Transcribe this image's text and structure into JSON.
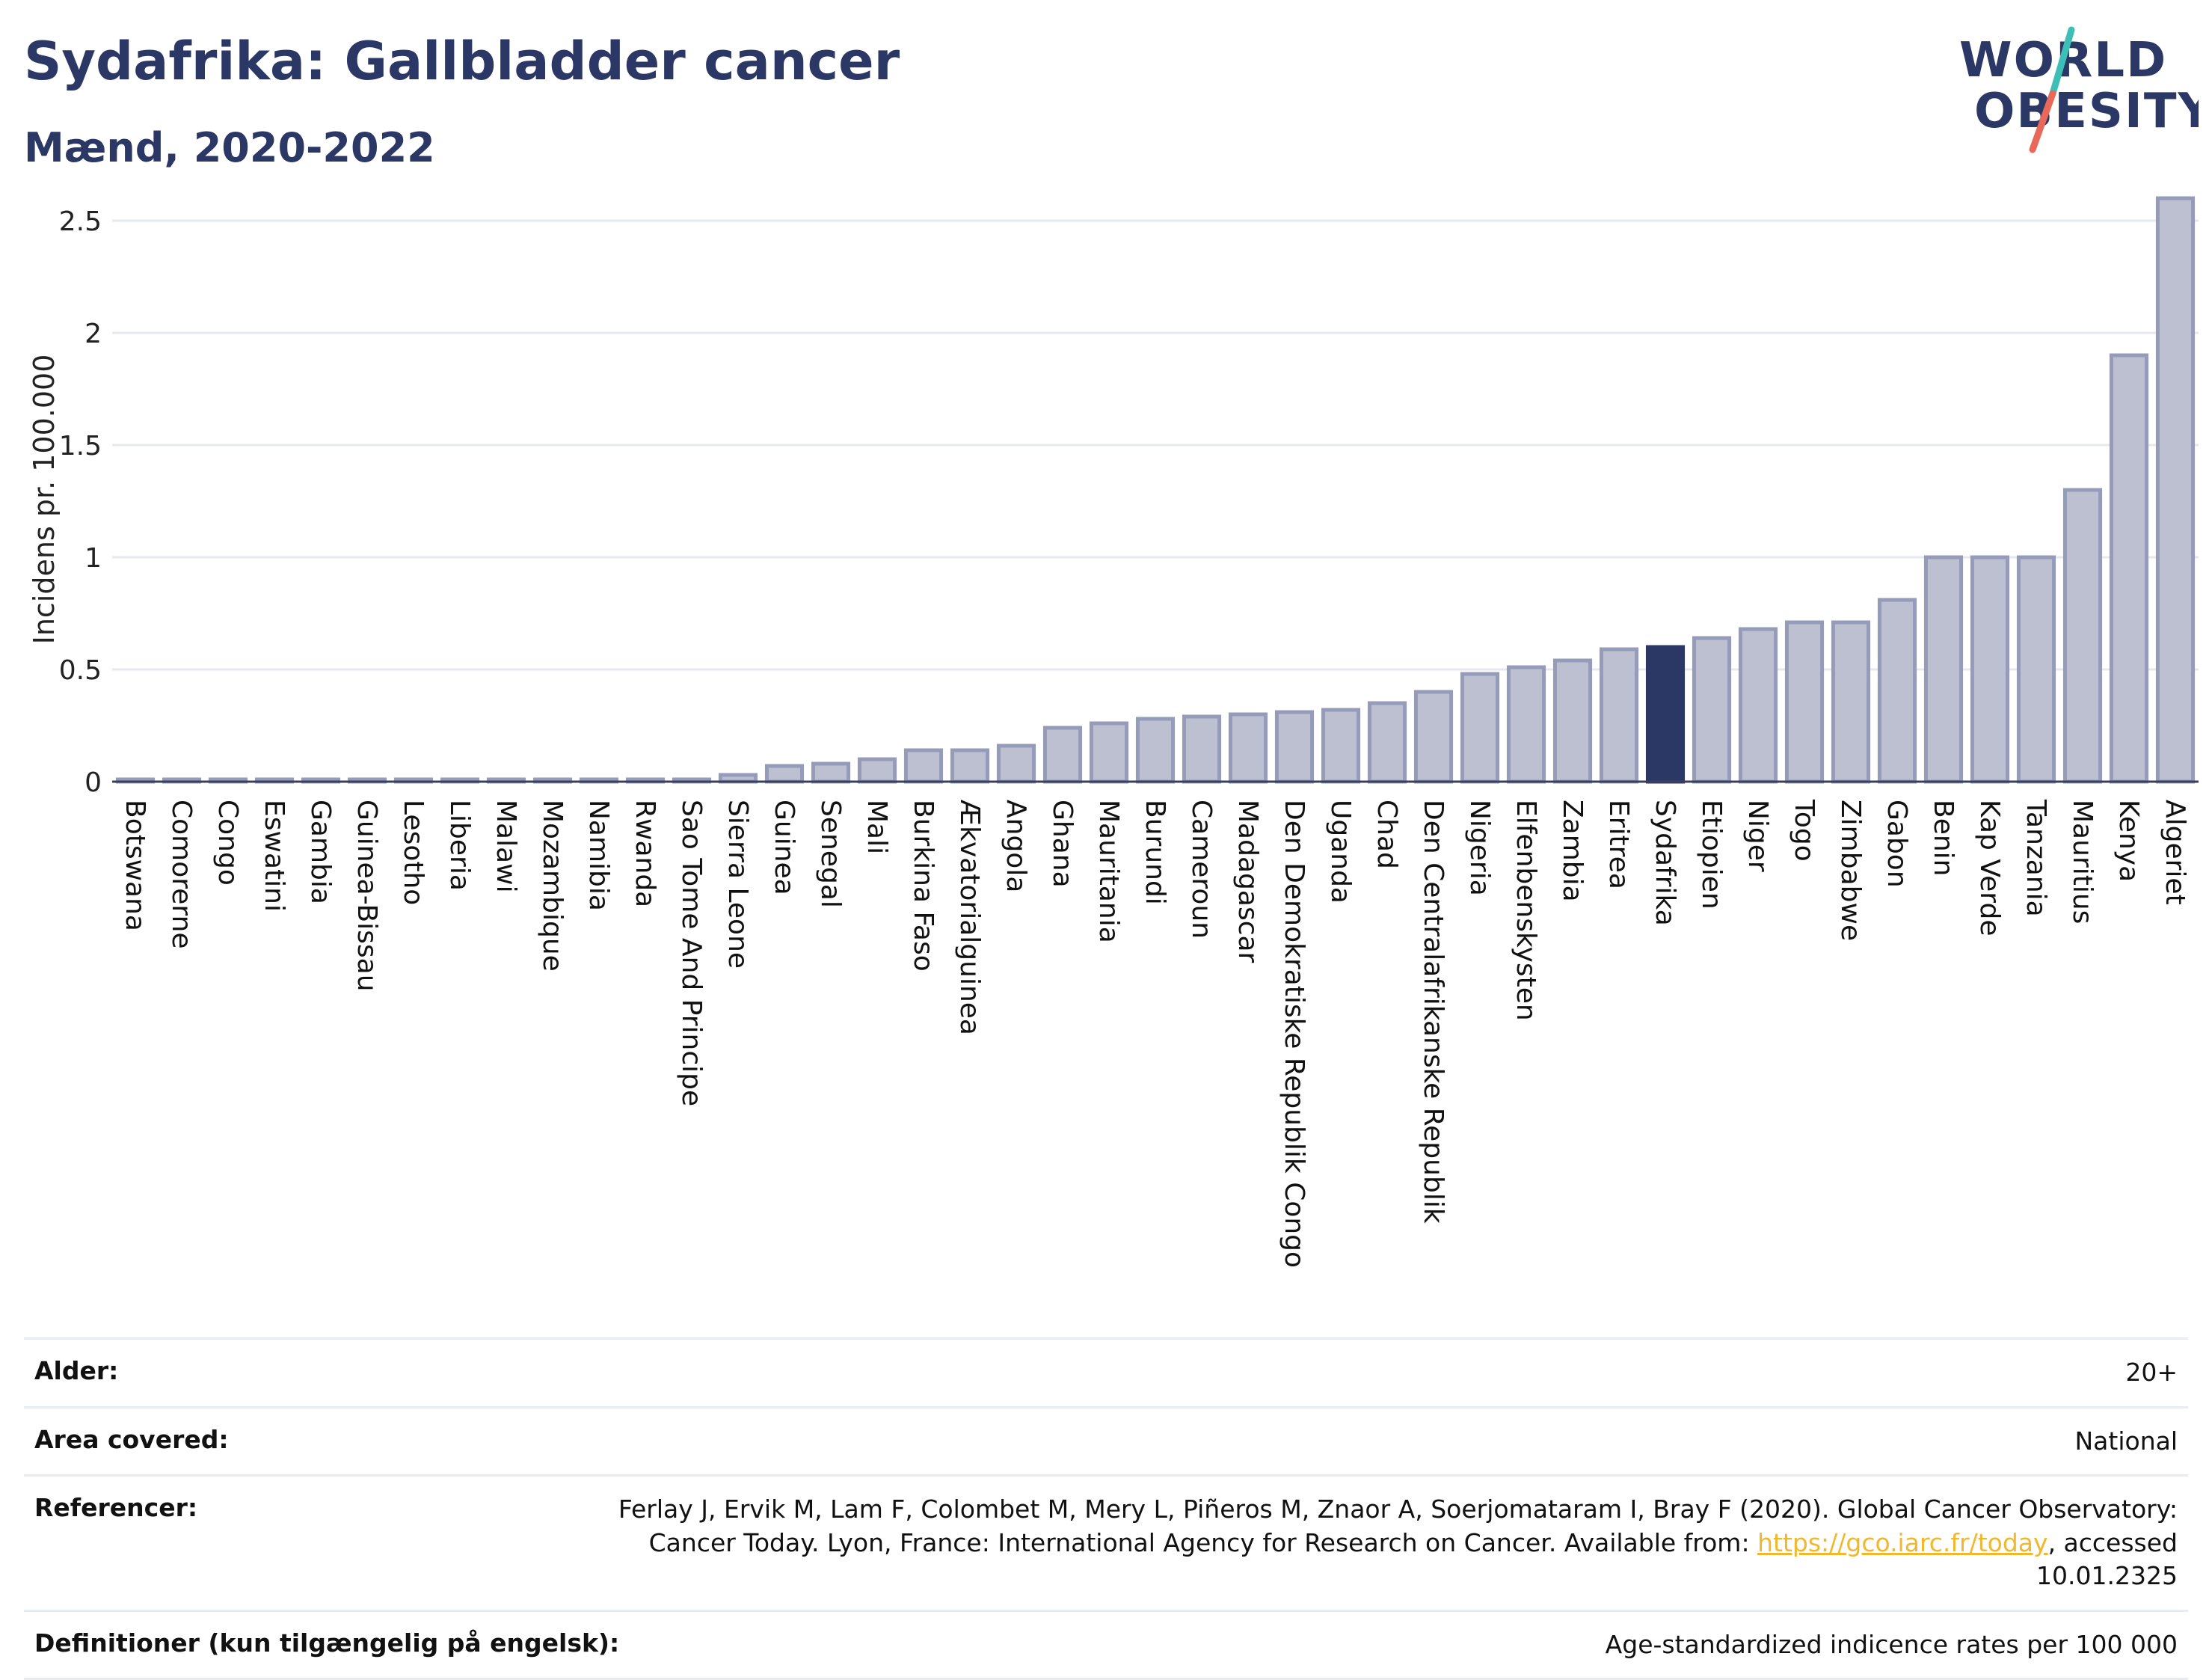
{
  "header": {
    "title": "Sydafrika: Gallbladder cancer",
    "subtitle": "Mænd, 2020-2022"
  },
  "logo": {
    "line1": "WORLD",
    "line2": "OBESITY",
    "colors": {
      "text": "#2b3764",
      "slash_top": "#3dbfb8",
      "slash_bottom": "#e8685a"
    }
  },
  "chart_data": {
    "type": "bar",
    "ylabel": "Incidens pr. 100.000",
    "xlabel": "",
    "ylim": [
      0,
      2.65
    ],
    "yticks": [
      0,
      0.5,
      1,
      1.5,
      2,
      2.5
    ],
    "ytick_labels": [
      "0",
      "0.5",
      "1",
      "1.5",
      "2",
      "2.5"
    ],
    "grid": true,
    "highlight": "Sydafrika",
    "colors": {
      "bar": "#bcc0d1",
      "bar_border": "#959bb8",
      "highlight": "#2b3764"
    },
    "categories": [
      "Botswana",
      "Comorerne",
      "Congo",
      "Eswatini",
      "Gambia",
      "Guinea-Bissau",
      "Lesotho",
      "Liberia",
      "Malawi",
      "Mozambique",
      "Namibia",
      "Rwanda",
      "Sao Tome And Principe",
      "Sierra Leone",
      "Guinea",
      "Senegal",
      "Mali",
      "Burkina Faso",
      "Ækvatorialguinea",
      "Angola",
      "Ghana",
      "Mauritania",
      "Burundi",
      "Cameroun",
      "Madagascar",
      "Den Demokratiske Republik Congo",
      "Uganda",
      "Chad",
      "Den Centralafrikanske Republik",
      "Nigeria",
      "Elfenbenskysten",
      "Zambia",
      "Eritrea",
      "Sydafrika",
      "Etiopien",
      "Niger",
      "Togo",
      "Zimbabwe",
      "Gabon",
      "Benin",
      "Kap Verde",
      "Tanzania",
      "Mauritius",
      "Kenya",
      "Algeriet"
    ],
    "values": [
      0.01,
      0.01,
      0.01,
      0.01,
      0.01,
      0.01,
      0.01,
      0.01,
      0.01,
      0.01,
      0.01,
      0.01,
      0.01,
      0.03,
      0.07,
      0.08,
      0.1,
      0.14,
      0.14,
      0.16,
      0.24,
      0.26,
      0.28,
      0.29,
      0.3,
      0.31,
      0.32,
      0.35,
      0.4,
      0.48,
      0.51,
      0.54,
      0.59,
      0.6,
      0.64,
      0.68,
      0.71,
      0.71,
      0.81,
      1.0,
      1.0,
      1.0,
      1.3,
      1.9,
      2.6
    ]
  },
  "meta": {
    "age_label": "Alder:",
    "age_value": "20+",
    "area_label": "Area covered:",
    "area_value": "National",
    "ref_label": "Referencer:",
    "ref_text_1": "Ferlay J, Ervik M, Lam F, Colombet M, Mery L, Piñeros M, Znaor A, Soerjomataram I, Bray F (2020). Global Cancer Observatory: Cancer Today. Lyon, France: International Agency for Research on Cancer. Available from: ",
    "ref_link": "https://gco.iarc.fr/today",
    "ref_text_2": ", accessed 10.01.2325",
    "def_label": "Definitioner (kun tilgængelig på engelsk):",
    "def_value": "Age-standardized indicence rates per 100 000"
  }
}
